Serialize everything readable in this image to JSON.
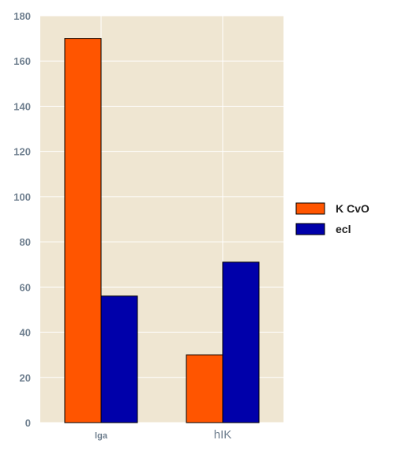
{
  "chart_data": {
    "type": "bar",
    "categories": [
      "lga",
      "hIK"
    ],
    "series": [
      {
        "name": "K CvO",
        "color": "#ff5500",
        "values": [
          170,
          30
        ]
      },
      {
        "name": "ecl",
        "color": "#0000aa",
        "values": [
          56,
          71
        ]
      }
    ],
    "title": "",
    "xlabel": "",
    "ylabel": "",
    "ylim": [
      0,
      180
    ],
    "yticks": [
      "0",
      "20",
      "40",
      "60",
      "80",
      "100",
      "120",
      "140",
      "160",
      "180"
    ],
    "grid": true,
    "legend_position": "right",
    "plot_background": "#efe6d2"
  }
}
